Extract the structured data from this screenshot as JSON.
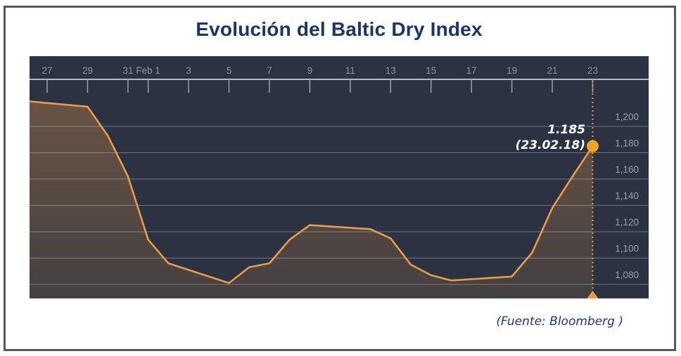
{
  "title": "Evolución del Baltic Dry Index",
  "annotation": {
    "value": "1.185",
    "date": "(23.02.18)"
  },
  "source": {
    "label": "(Fuente: Bloomberg )"
  },
  "colors": {
    "title_blue": "#17356f",
    "panel_navy": "#2b3241",
    "line_orange": "#ec9b40",
    "marker_amber": "#f6a41f",
    "gridline": "rgba(190,198,212,0.45)",
    "axis_label_gray": "#8d95a2"
  },
  "chart_data": {
    "type": "area",
    "title": "Evolución del Baltic Dry Index",
    "x": [
      "26 Jan",
      "29 Jan",
      "30 Jan",
      "31 Jan",
      "1 Feb",
      "2 Feb",
      "5 Feb",
      "6 Feb",
      "7 Feb",
      "8 Feb",
      "9 Feb",
      "12 Feb",
      "13 Feb",
      "14 Feb",
      "15 Feb",
      "16 Feb",
      "19 Feb",
      "20 Feb",
      "21 Feb",
      "22 Feb",
      "23 Feb"
    ],
    "x_day_index": [
      0,
      3,
      4,
      5,
      6,
      7,
      10,
      11,
      12,
      13,
      14,
      17,
      18,
      19,
      20,
      21,
      24,
      25,
      26,
      27,
      28
    ],
    "values": [
      1219,
      1215,
      1193,
      1162,
      1114,
      1096,
      1081,
      1093,
      1096,
      1114,
      1125,
      1122,
      1115,
      1095,
      1087,
      1083,
      1086,
      1104,
      1138,
      1162,
      1185
    ],
    "x_tick_labels": [
      "27",
      "29",
      "31",
      "Feb 1",
      "3",
      "5",
      "7",
      "9",
      "11",
      "13",
      "15",
      "17",
      "19",
      "21",
      "23"
    ],
    "x_tick_day_index": [
      1,
      3,
      5,
      6,
      8,
      10,
      12,
      14,
      16,
      18,
      20,
      22,
      24,
      26,
      28
    ],
    "y_ticks": [
      "1,200",
      "1,180",
      "1,160",
      "1,140",
      "1,120",
      "1,100",
      "1,080"
    ],
    "y_tick_values": [
      1200,
      1180,
      1160,
      1140,
      1120,
      1100,
      1080
    ],
    "ylim": [
      1069,
      1253
    ],
    "grid": true,
    "legend": false,
    "highlight": {
      "day_index": 28,
      "value": 1185,
      "label": "1.185",
      "date": "(23.02.18)"
    }
  }
}
